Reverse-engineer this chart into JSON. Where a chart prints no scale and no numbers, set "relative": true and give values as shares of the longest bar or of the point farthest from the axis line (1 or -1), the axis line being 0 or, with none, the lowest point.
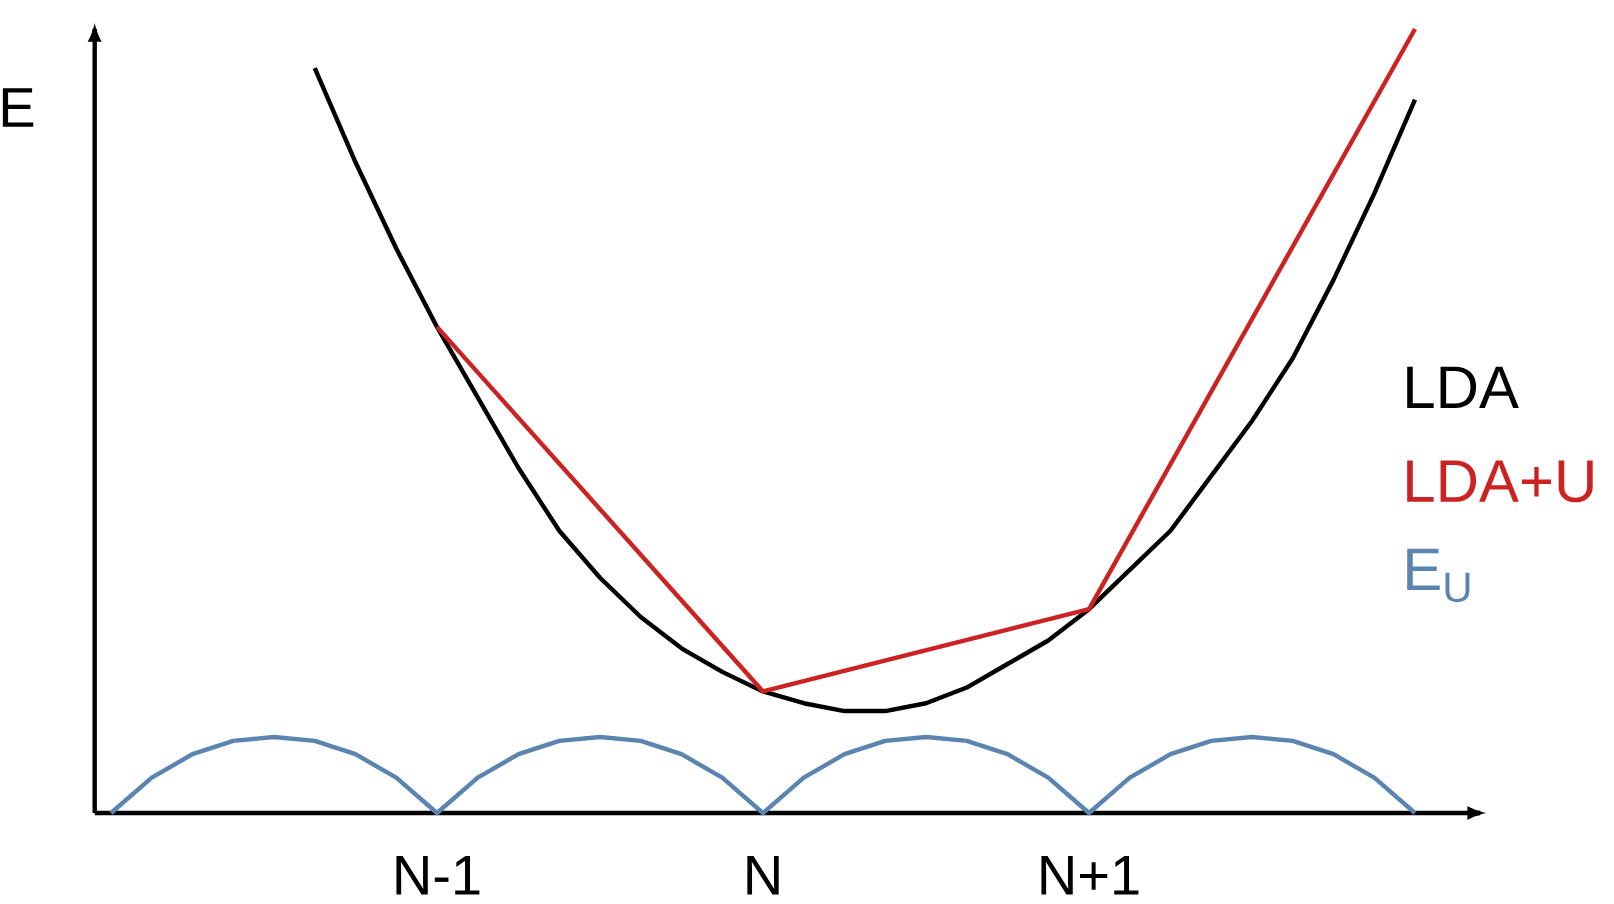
{
  "chart_data": {
    "type": "line",
    "relative": true,
    "ylabel": "E",
    "categories": [
      null,
      null,
      null,
      null,
      null,
      null,
      null,
      null,
      "N-1",
      null,
      null,
      null,
      null,
      null,
      null,
      null,
      "N",
      null,
      null,
      null,
      null,
      null,
      null,
      null,
      "N+1",
      null,
      null,
      null,
      null,
      null,
      null,
      null,
      null
    ],
    "legend": "right",
    "series": [
      {
        "name": "LDA",
        "color": "#000000",
        "values": [
          null,
          null,
          null,
          null,
          null,
          0.95,
          0.83,
          0.72,
          0.62,
          0.53,
          0.44,
          0.36,
          0.3,
          0.25,
          0.21,
          0.18,
          0.155,
          0.14,
          0.13,
          0.13,
          0.14,
          0.16,
          0.19,
          0.22,
          0.26,
          0.31,
          0.36,
          0.43,
          0.5,
          0.58,
          0.68,
          0.79,
          0.91
        ]
      },
      {
        "name": "LDA+U",
        "color": "#cc2222",
        "values": [
          null,
          null,
          null,
          null,
          null,
          null,
          null,
          null,
          0.62,
          null,
          null,
          null,
          null,
          null,
          null,
          null,
          0.155,
          null,
          null,
          null,
          null,
          null,
          null,
          null,
          0.26,
          null,
          null,
          null,
          null,
          null,
          null,
          null,
          1.0
        ]
      },
      {
        "name": "E$_{U}$",
        "color": "#5b84b1",
        "values": [
          0,
          0.045,
          0.075,
          0.092,
          0.097,
          0.092,
          0.075,
          0.045,
          0,
          0.045,
          0.075,
          0.092,
          0.097,
          0.092,
          0.075,
          0.045,
          0,
          0.045,
          0.075,
          0.092,
          0.097,
          0.092,
          0.075,
          0.045,
          0,
          0.045,
          0.075,
          0.092,
          0.097,
          0.092,
          0.075,
          0.045,
          0
        ]
      }
    ]
  }
}
